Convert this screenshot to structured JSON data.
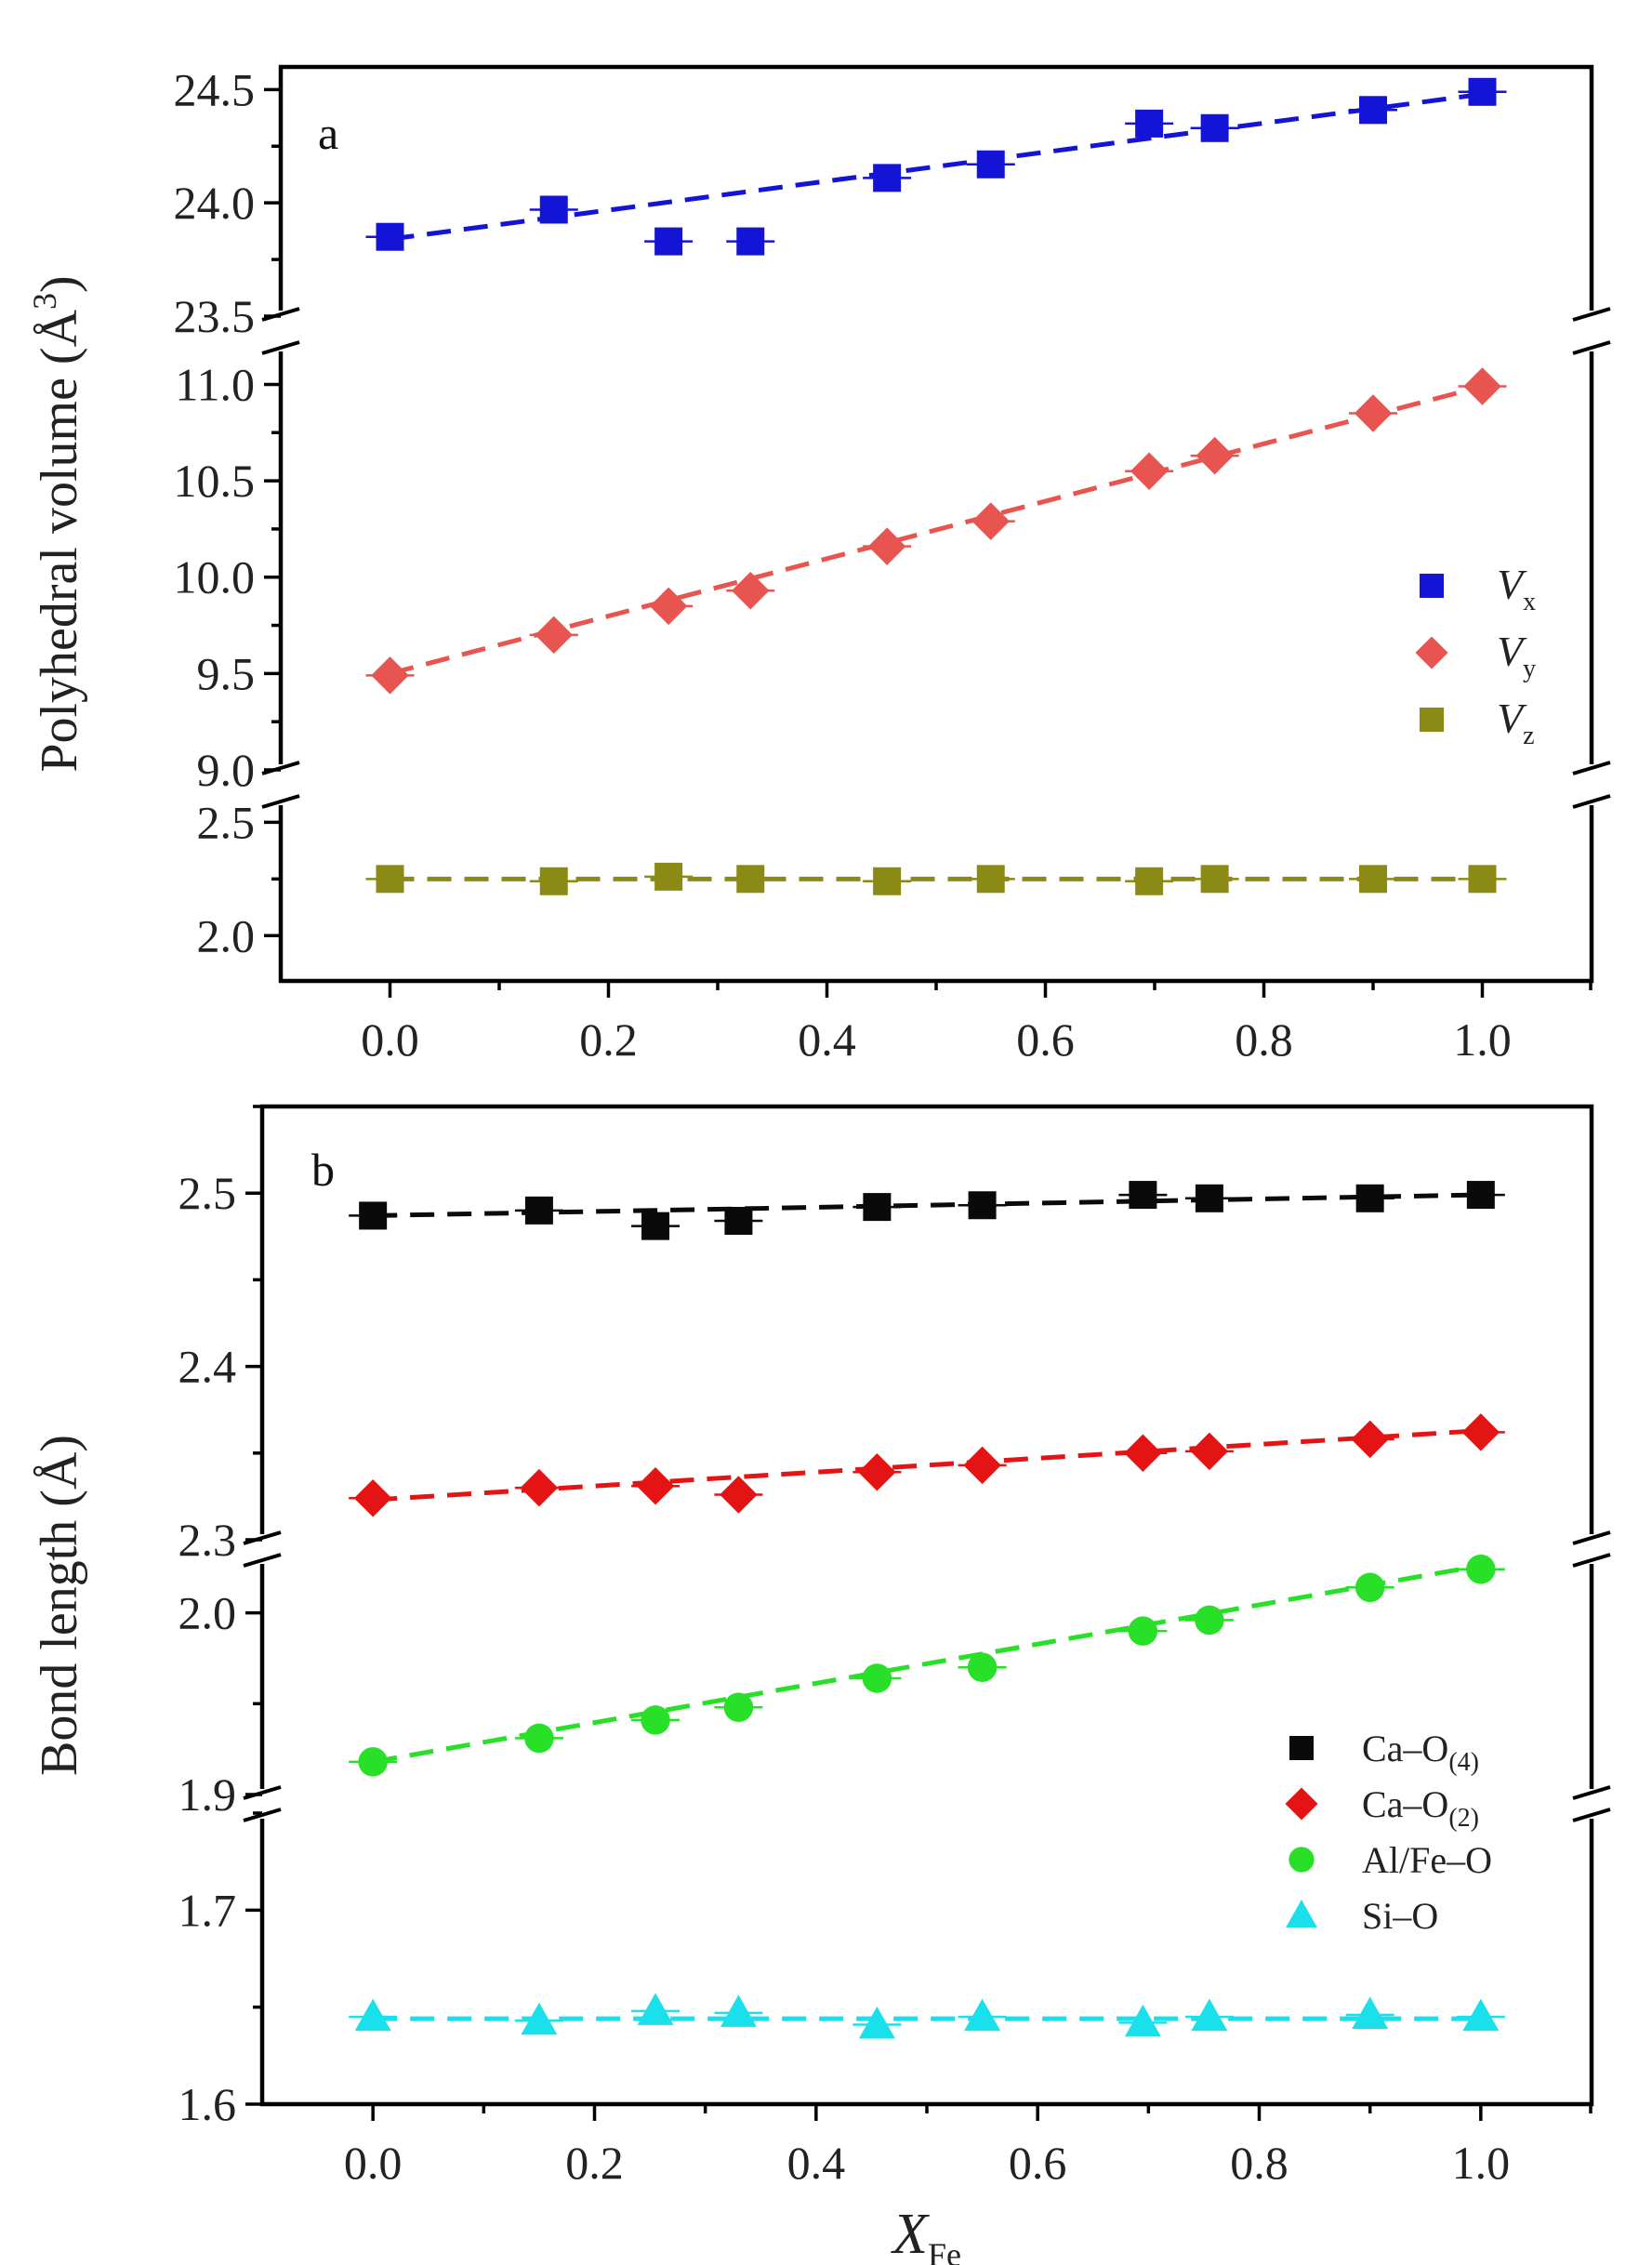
{
  "chart_data": [
    {
      "type": "scatter",
      "panel_label": "a",
      "ylabel": "Polyhedral volume (Å³)",
      "ylabel_parts": {
        "main": "Polyhedral volume (Å",
        "sup": "3",
        "end": ")"
      },
      "xlabel": "",
      "xlim": [
        -0.1,
        1.1
      ],
      "x_ticks": [
        "0.0",
        "0.2",
        "0.4",
        "0.6",
        "0.8",
        "1.0"
      ],
      "y_segments": [
        {
          "range": [
            1.8,
            2.6
          ],
          "ticks": [
            "2.0",
            "2.5"
          ]
        },
        {
          "range": [
            9.0,
            11.2
          ],
          "ticks": [
            "9.0",
            "9.5",
            "10.0",
            "10.5",
            "11.0"
          ]
        },
        {
          "range": [
            23.5,
            24.6
          ],
          "ticks": [
            "23.5",
            "24.0",
            "24.5"
          ]
        }
      ],
      "axis_break": true,
      "legend_position": "right-middle",
      "series": [
        {
          "name": "Vx",
          "name_main": "V",
          "name_sub": "x",
          "marker": "square",
          "color": "#1414d6",
          "x": [
            0.0,
            0.15,
            0.255,
            0.33,
            0.455,
            0.55,
            0.695,
            0.755,
            0.9,
            1.0
          ],
          "y": [
            23.85,
            23.97,
            23.83,
            23.83,
            24.11,
            24.17,
            24.35,
            24.33,
            24.41,
            24.49
          ],
          "fit": [
            23.84,
            24.48
          ]
        },
        {
          "name": "Vy",
          "name_main": "V",
          "name_sub": "y",
          "marker": "diamond",
          "color": "#e85450",
          "x": [
            0.0,
            0.15,
            0.255,
            0.33,
            0.455,
            0.55,
            0.695,
            0.755,
            0.9,
            1.0
          ],
          "y": [
            9.49,
            9.7,
            9.85,
            9.93,
            10.16,
            10.29,
            10.55,
            10.63,
            10.85,
            10.99
          ],
          "fit": [
            9.5,
            10.99
          ]
        },
        {
          "name": "Vz",
          "name_main": "V",
          "name_sub": "z",
          "marker": "square",
          "color": "#8a8a14",
          "x": [
            0.0,
            0.15,
            0.255,
            0.33,
            0.455,
            0.55,
            0.695,
            0.755,
            0.9,
            1.0
          ],
          "y": [
            2.25,
            2.24,
            2.26,
            2.25,
            2.24,
            2.25,
            2.24,
            2.25,
            2.25,
            2.25
          ],
          "fit": [
            2.25,
            2.25
          ]
        }
      ]
    },
    {
      "type": "scatter",
      "panel_label": "b",
      "ylabel": "Bond length (Å)",
      "xlabel": "XFe",
      "xlabel_parts": {
        "main": "X",
        "sub": "Fe"
      },
      "xlim": [
        -0.1,
        1.1
      ],
      "x_ticks": [
        "0.0",
        "0.2",
        "0.4",
        "0.6",
        "0.8",
        "1.0"
      ],
      "y_segments": [
        {
          "range": [
            1.6,
            1.75
          ],
          "ticks": [
            "1.6",
            "1.7"
          ]
        },
        {
          "range": [
            1.9,
            2.03
          ],
          "ticks": [
            "1.9",
            "2.0"
          ]
        },
        {
          "range": [
            2.3,
            2.55
          ],
          "ticks": [
            "2.3",
            "2.4",
            "2.5"
          ]
        }
      ],
      "axis_break": true,
      "legend_position": "bottom-right",
      "series": [
        {
          "name": "Ca–O(4)",
          "name_main": "Ca–O",
          "name_sub": "(4)",
          "marker": "square",
          "color": "#0a0a0a",
          "x": [
            0.0,
            0.15,
            0.255,
            0.33,
            0.455,
            0.55,
            0.695,
            0.755,
            0.9,
            1.0
          ],
          "y": [
            2.487,
            2.49,
            2.481,
            2.484,
            2.492,
            2.493,
            2.499,
            2.497,
            2.497,
            2.499
          ],
          "fit": [
            2.487,
            2.499
          ]
        },
        {
          "name": "Ca–O(2)",
          "name_main": "Ca–O",
          "name_sub": "(2)",
          "marker": "diamond",
          "color": "#e41414",
          "x": [
            0.0,
            0.15,
            0.255,
            0.33,
            0.455,
            0.55,
            0.695,
            0.755,
            0.9,
            1.0
          ],
          "y": [
            2.324,
            2.33,
            2.331,
            2.326,
            2.339,
            2.343,
            2.35,
            2.351,
            2.358,
            2.362
          ],
          "fit": [
            2.323,
            2.363
          ]
        },
        {
          "name": "Al/Fe–O",
          "name_main": "Al/Fe–O",
          "name_sub": "",
          "marker": "circle",
          "color": "#28e028",
          "x": [
            0.0,
            0.15,
            0.255,
            0.33,
            0.455,
            0.55,
            0.695,
            0.755,
            0.9,
            1.0
          ],
          "y": [
            1.918,
            1.931,
            1.941,
            1.948,
            1.964,
            1.97,
            1.99,
            1.996,
            2.014,
            2.024
          ],
          "fit": [
            1.918,
            2.026
          ]
        },
        {
          "name": "Si–O",
          "name_main": "Si–O",
          "name_sub": "",
          "marker": "triangle",
          "color": "#19e0ea",
          "x": [
            0.0,
            0.15,
            0.255,
            0.33,
            0.455,
            0.55,
            0.695,
            0.755,
            0.9,
            1.0
          ],
          "y": [
            1.645,
            1.643,
            1.648,
            1.647,
            1.641,
            1.645,
            1.642,
            1.645,
            1.646,
            1.645
          ],
          "fit": [
            1.644,
            1.644
          ]
        }
      ]
    }
  ]
}
